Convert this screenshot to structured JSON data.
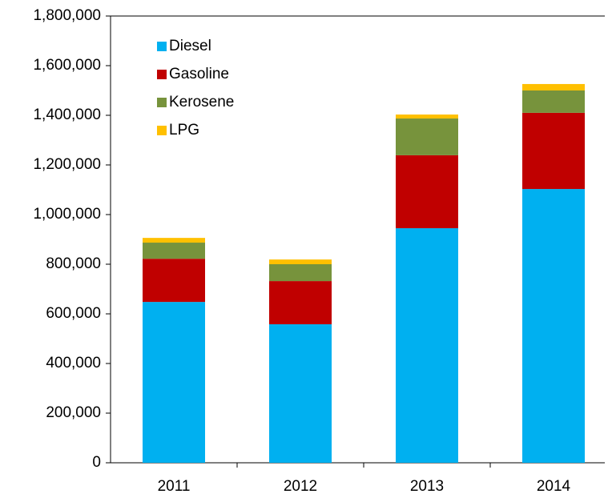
{
  "chart_data": {
    "type": "stacked-bar",
    "categories": [
      "2011",
      "2012",
      "2013",
      "2014"
    ],
    "series": [
      {
        "name": "Diesel",
        "color": "#00b0f0",
        "values": [
          648000,
          558000,
          945000,
          1103000
        ]
      },
      {
        "name": "Gasoline",
        "color": "#c00000",
        "values": [
          174000,
          174000,
          294000,
          307000
        ]
      },
      {
        "name": "Kerosene",
        "color": "#77933c",
        "values": [
          65000,
          68000,
          148000,
          90000
        ]
      },
      {
        "name": "LPG",
        "color": "#ffc000",
        "values": [
          19000,
          19000,
          16000,
          26000
        ]
      }
    ],
    "ylim": [
      0,
      1800000
    ],
    "yticks": [
      0,
      {
        "value": 200000,
        "label": "200,000"
      },
      {
        "value": 400000,
        "label": "400,000"
      },
      {
        "value": 600000,
        "label": "600,000"
      },
      {
        "value": 800000,
        "label": "800,000"
      },
      {
        "value": 1000000,
        "label": "1,000,000"
      },
      {
        "value": 1200000,
        "label": "1,200,000"
      },
      {
        "value": 1400000,
        "label": "1,400,000"
      },
      {
        "value": 1600000,
        "label": "1,600,000"
      },
      {
        "value": 1800000,
        "label": "1,800,000"
      }
    ],
    "legend": "upper-left"
  }
}
